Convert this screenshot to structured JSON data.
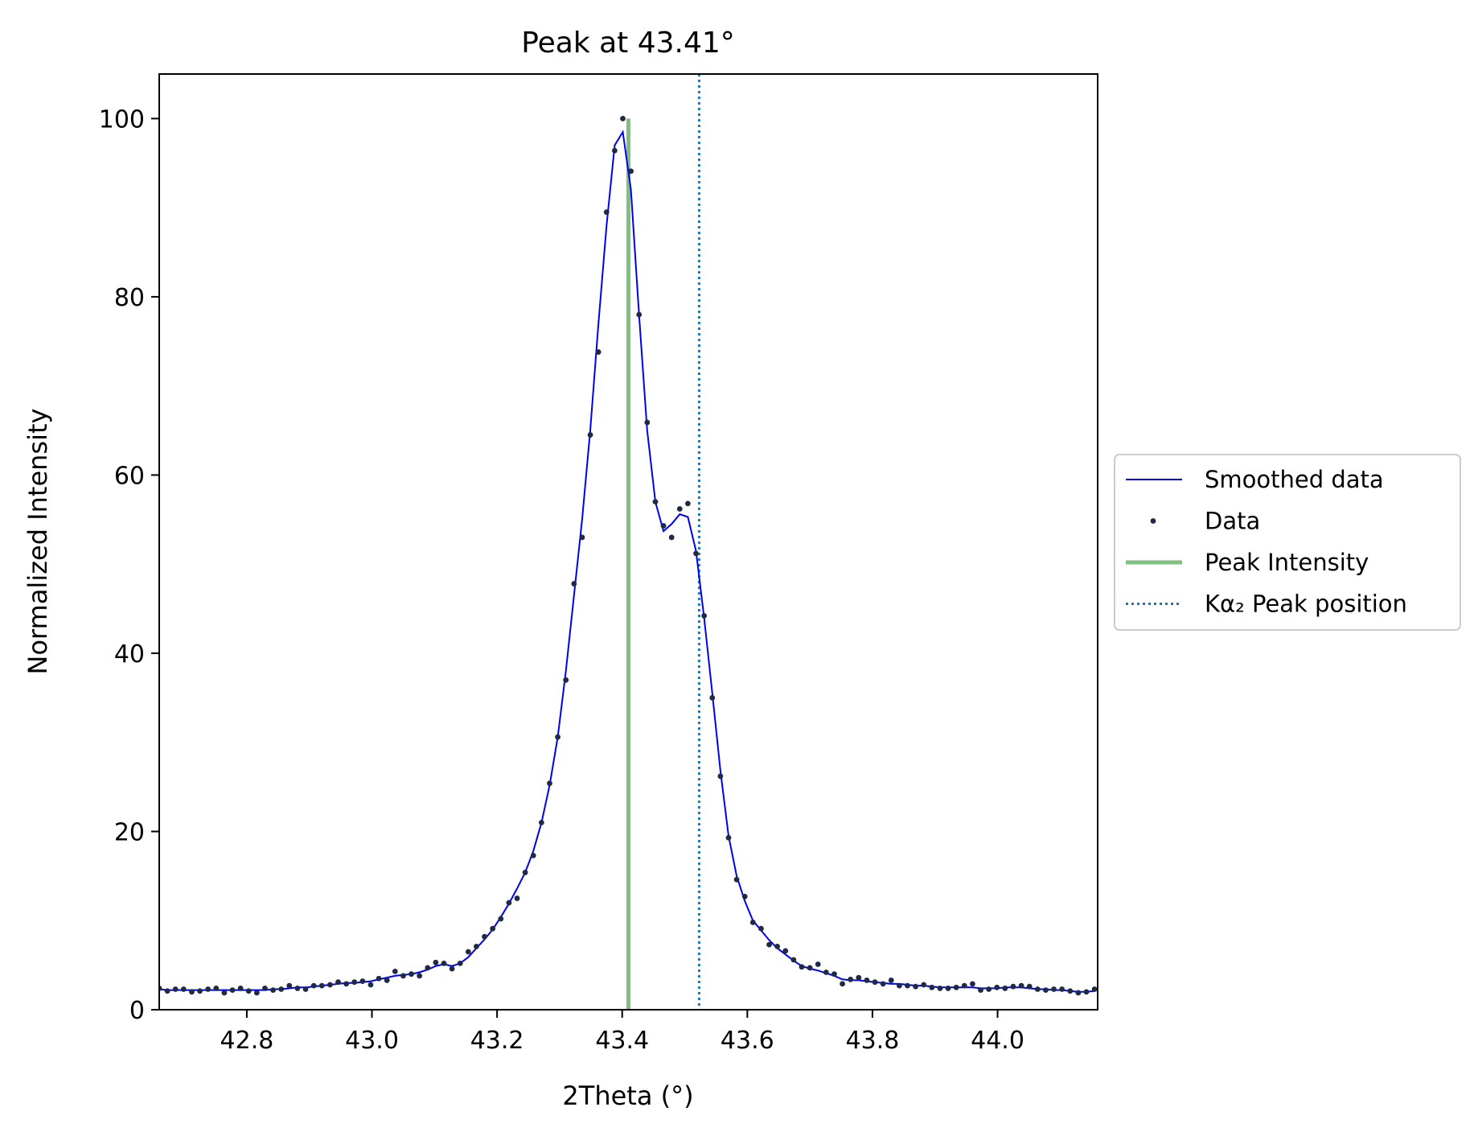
{
  "chart_data": {
    "type": "line",
    "title": "Peak at 43.41°",
    "xlabel": "2Theta (°)",
    "ylabel": "Normalized Intensity",
    "xlim": [
      42.66,
      44.16
    ],
    "ylim": [
      0,
      105
    ],
    "x_ticks": [
      "42.8",
      "43.0",
      "43.2",
      "43.4",
      "43.6",
      "43.8",
      "44.0"
    ],
    "x_tick_values": [
      42.8,
      43.0,
      43.2,
      43.4,
      43.6,
      43.8,
      44.0
    ],
    "y_ticks": [
      "0",
      "20",
      "40",
      "60",
      "80",
      "100"
    ],
    "y_tick_values": [
      0,
      20,
      40,
      60,
      80,
      100
    ],
    "grid": false,
    "legend_position": "outside-right",
    "legend": [
      {
        "label": "Smoothed data",
        "style": "line",
        "color": "#0000ee"
      },
      {
        "label": "Data",
        "style": "dot",
        "color": "#1f2a44"
      },
      {
        "label": "Peak Intensity",
        "style": "line",
        "color": "#7fbf7f"
      },
      {
        "label": "Kα₂ Peak position",
        "style": "dotted",
        "color": "#1f77b4"
      }
    ],
    "peak_intensity": {
      "x": 43.41,
      "y": 100
    },
    "ka2_position": {
      "x": 43.523
    },
    "series": [
      {
        "name": "Data",
        "x": [
          42.66,
          42.673,
          42.686,
          42.699,
          42.712,
          42.725,
          42.738,
          42.751,
          42.764,
          42.777,
          42.79,
          42.803,
          42.816,
          42.829,
          42.842,
          42.855,
          42.868,
          42.881,
          42.894,
          42.907,
          42.92,
          42.933,
          42.946,
          42.959,
          42.972,
          42.985,
          42.998,
          43.011,
          43.024,
          43.037,
          43.05,
          43.063,
          43.076,
          43.089,
          43.102,
          43.115,
          43.128,
          43.141,
          43.154,
          43.167,
          43.18,
          43.193,
          43.206,
          43.219,
          43.232,
          43.245,
          43.258,
          43.271,
          43.284,
          43.297,
          43.31,
          43.323,
          43.336,
          43.349,
          43.362,
          43.375,
          43.388,
          43.401,
          43.414,
          43.427,
          43.44,
          43.453,
          43.466,
          43.479,
          43.492,
          43.505,
          43.518,
          43.531,
          43.544,
          43.557,
          43.57,
          43.583,
          43.596,
          43.609,
          43.622,
          43.635,
          43.648,
          43.661,
          43.674,
          43.687,
          43.7,
          43.713,
          43.726,
          43.739,
          43.752,
          43.765,
          43.778,
          43.791,
          43.804,
          43.817,
          43.83,
          43.843,
          43.856,
          43.869,
          43.882,
          43.895,
          43.908,
          43.921,
          43.934,
          43.947,
          43.96,
          43.973,
          43.986,
          43.999,
          44.012,
          44.025,
          44.038,
          44.051,
          44.064,
          44.077,
          44.09,
          44.103,
          44.116,
          44.129,
          44.142,
          44.155
        ],
        "y": [
          2.4,
          2.1,
          2.3,
          2.3,
          2.0,
          2.1,
          2.3,
          2.4,
          1.9,
          2.2,
          2.4,
          2.1,
          1.9,
          2.4,
          2.2,
          2.3,
          2.7,
          2.4,
          2.3,
          2.7,
          2.7,
          2.8,
          3.1,
          2.9,
          3.1,
          3.2,
          2.8,
          3.5,
          3.3,
          4.3,
          3.8,
          4.0,
          3.8,
          4.7,
          5.3,
          5.2,
          4.6,
          5.2,
          6.5,
          7.1,
          8.2,
          9.1,
          10.2,
          12.0,
          12.5,
          15.4,
          17.3,
          21.0,
          25.4,
          30.6,
          37.0,
          47.8,
          53.0,
          64.5,
          73.8,
          89.5,
          96.4,
          100.0,
          94.1,
          78.0,
          65.9,
          57.0,
          54.3,
          53.0,
          56.2,
          56.8,
          51.2,
          44.2,
          35.0,
          26.2,
          19.3,
          14.6,
          12.7,
          9.8,
          9.1,
          7.3,
          7.1,
          6.6,
          5.6,
          4.8,
          4.7,
          5.1,
          4.2,
          4.0,
          2.9,
          3.4,
          3.6,
          3.3,
          3.1,
          2.9,
          3.3,
          2.7,
          2.7,
          2.6,
          2.8,
          2.5,
          2.4,
          2.4,
          2.5,
          2.7,
          2.9,
          2.2,
          2.3,
          2.5,
          2.4,
          2.6,
          2.7,
          2.6,
          2.3,
          2.2,
          2.3,
          2.3,
          2.1,
          1.9,
          2.0,
          2.3
        ]
      },
      {
        "name": "Smoothed data",
        "x": [
          42.66,
          42.673,
          42.686,
          42.699,
          42.712,
          42.725,
          42.738,
          42.751,
          42.764,
          42.777,
          42.79,
          42.803,
          42.816,
          42.829,
          42.842,
          42.855,
          42.868,
          42.881,
          42.894,
          42.907,
          42.92,
          42.933,
          42.946,
          42.959,
          42.972,
          42.985,
          42.998,
          43.011,
          43.024,
          43.037,
          43.05,
          43.063,
          43.076,
          43.089,
          43.102,
          43.115,
          43.128,
          43.141,
          43.154,
          43.167,
          43.18,
          43.193,
          43.206,
          43.219,
          43.232,
          43.245,
          43.258,
          43.271,
          43.284,
          43.297,
          43.31,
          43.323,
          43.336,
          43.349,
          43.362,
          43.375,
          43.388,
          43.401,
          43.414,
          43.427,
          43.44,
          43.453,
          43.466,
          43.479,
          43.492,
          43.505,
          43.518,
          43.531,
          43.544,
          43.557,
          43.57,
          43.583,
          43.596,
          43.609,
          43.622,
          43.635,
          43.648,
          43.661,
          43.674,
          43.687,
          43.7,
          43.713,
          43.726,
          43.739,
          43.752,
          43.765,
          43.778,
          43.791,
          43.804,
          43.817,
          43.83,
          43.843,
          43.856,
          43.869,
          43.882,
          43.895,
          43.908,
          43.921,
          43.934,
          43.947,
          43.96,
          43.973,
          43.986,
          43.999,
          44.012,
          44.025,
          44.038,
          44.051,
          44.064,
          44.077,
          44.09,
          44.103,
          44.116,
          44.129,
          44.142,
          44.155
        ],
        "y": [
          2.3,
          2.2,
          2.2,
          2.2,
          2.2,
          2.2,
          2.2,
          2.2,
          2.2,
          2.2,
          2.2,
          2.2,
          2.2,
          2.2,
          2.3,
          2.3,
          2.4,
          2.5,
          2.5,
          2.6,
          2.7,
          2.8,
          2.9,
          3.0,
          3.0,
          3.1,
          3.2,
          3.4,
          3.6,
          3.8,
          3.9,
          4.0,
          4.2,
          4.5,
          4.9,
          5.1,
          4.9,
          5.2,
          5.9,
          6.9,
          7.9,
          9.0,
          10.4,
          11.9,
          13.6,
          15.4,
          17.8,
          21.0,
          25.2,
          30.6,
          38.0,
          46.5,
          55.0,
          65.0,
          77.0,
          88.0,
          97.0,
          98.5,
          92.0,
          78.0,
          65.0,
          57.0,
          53.7,
          54.5,
          55.6,
          55.3,
          51.5,
          44.0,
          35.5,
          26.8,
          19.5,
          15.0,
          12.2,
          10.0,
          8.9,
          7.8,
          6.9,
          6.2,
          5.5,
          4.9,
          4.6,
          4.4,
          4.1,
          3.8,
          3.4,
          3.3,
          3.3,
          3.2,
          3.1,
          3.0,
          2.9,
          2.9,
          2.8,
          2.7,
          2.7,
          2.6,
          2.5,
          2.5,
          2.5,
          2.5,
          2.5,
          2.4,
          2.4,
          2.4,
          2.5,
          2.5,
          2.5,
          2.4,
          2.3,
          2.3,
          2.2,
          2.2,
          2.1,
          2.0,
          2.0,
          2.1
        ]
      }
    ]
  }
}
